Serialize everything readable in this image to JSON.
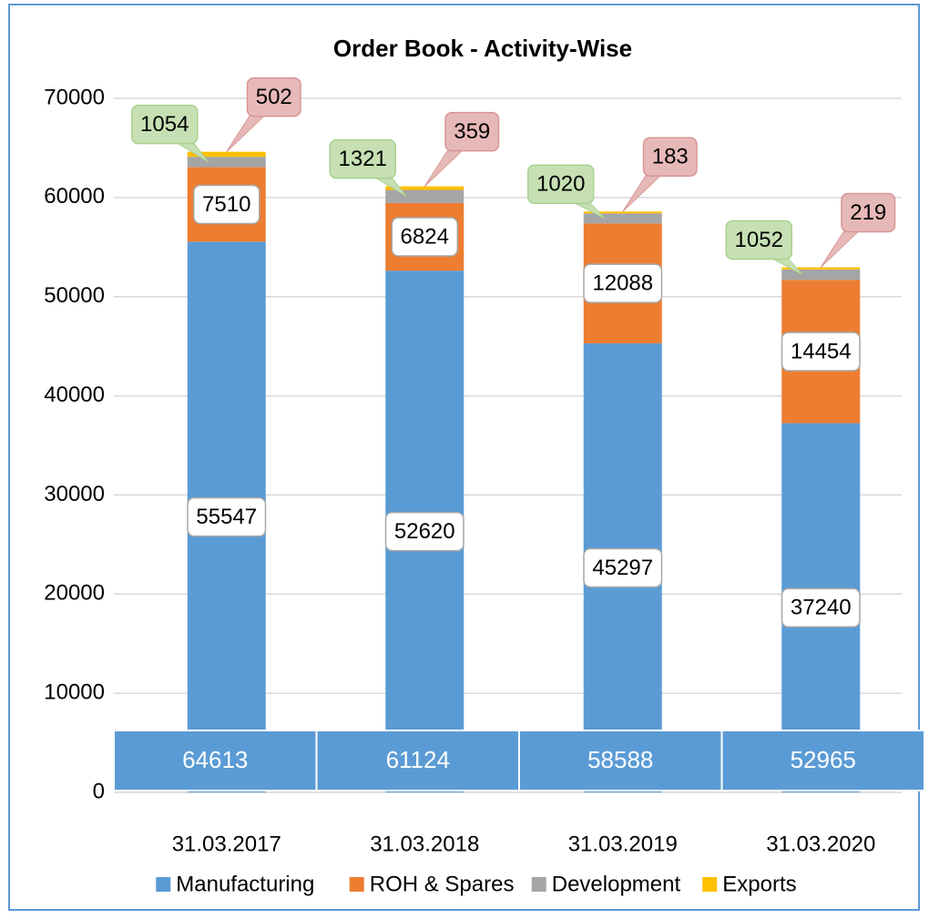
{
  "chart_data": {
    "type": "stacked_bar",
    "title": "Order Book - Activity-Wise",
    "categories": [
      "31.03.2017",
      "31.03.2018",
      "31.03.2019",
      "31.03.2020"
    ],
    "series": [
      {
        "name": "Manufacturing",
        "color": "#5b9bd5",
        "values": [
          55547,
          52620,
          45297,
          37240
        ]
      },
      {
        "name": "ROH & Spares",
        "color": "#ed7d31",
        "values": [
          7510,
          6824,
          12088,
          14454
        ]
      },
      {
        "name": "Development",
        "color": "#a5a5a5",
        "values": [
          1054,
          1321,
          1020,
          1052
        ]
      },
      {
        "name": "Exports",
        "color": "#ffc000",
        "values": [
          502,
          359,
          183,
          219
        ]
      }
    ],
    "totals": [
      64613,
      61124,
      58588,
      52965
    ],
    "ylim": [
      0,
      70000
    ],
    "yticks": [
      0,
      10000,
      20000,
      30000,
      40000,
      50000,
      60000,
      70000
    ],
    "grid": true,
    "legend": "bottom"
  }
}
